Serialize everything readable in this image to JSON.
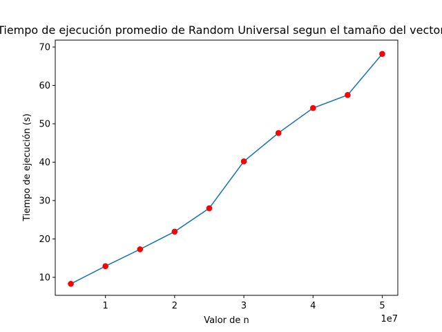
{
  "chart_data": {
    "type": "line",
    "title": "Tiempo de ejecución promedio de Random Universal segun el tamaño del vector",
    "xlabel": "Valor de n",
    "ylabel": "Tiempo de ejecución (s)",
    "x_offset_label": "1e7",
    "x_tick_labels": [
      "1",
      "2",
      "3",
      "4",
      "5"
    ],
    "x_ticks": [
      10000000,
      20000000,
      30000000,
      40000000,
      50000000
    ],
    "y_ticks": [
      10,
      20,
      30,
      40,
      50,
      60,
      70
    ],
    "xlim": [
      2750000,
      52250000
    ],
    "ylim": [
      5.3,
      71.8
    ],
    "grid": false,
    "line_color": "#1f77b4",
    "marker_color": "#ff0000",
    "x": [
      5000000,
      10000000,
      15000000,
      20000000,
      25000000,
      30000000,
      35000000,
      40000000,
      45000000,
      50000000
    ],
    "y": [
      8.3,
      12.9,
      17.3,
      21.9,
      28.0,
      40.2,
      47.6,
      54.1,
      57.5,
      68.2
    ]
  }
}
